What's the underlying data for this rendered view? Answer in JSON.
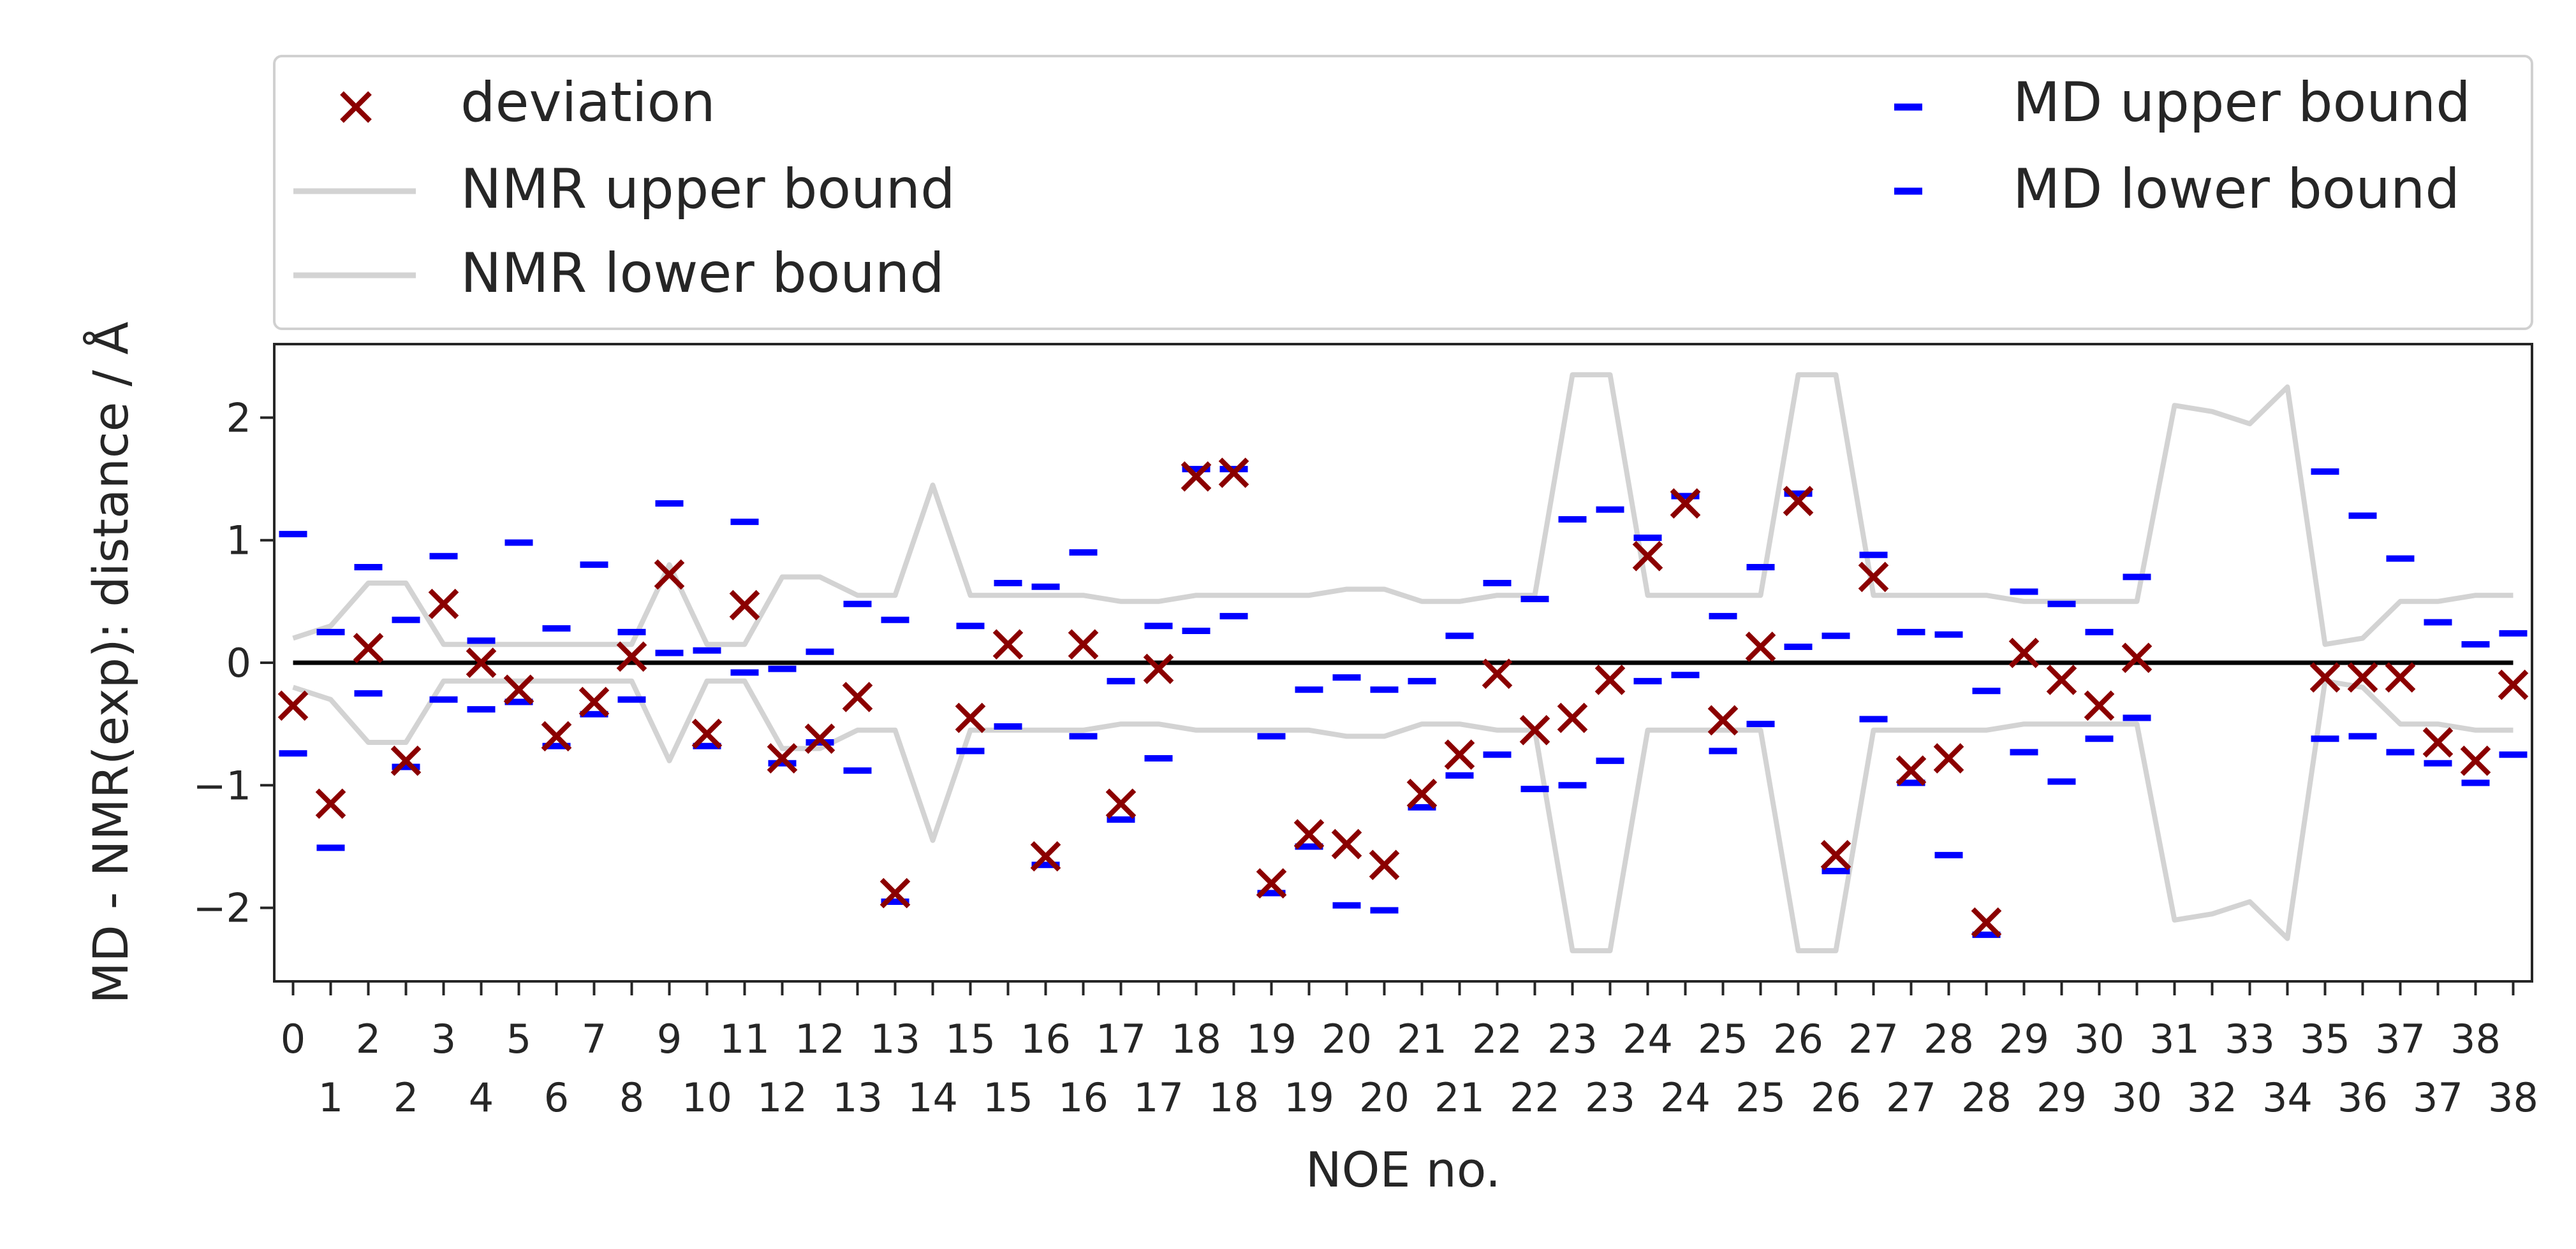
{
  "chart_data": {
    "type": "scatter",
    "xlabel": "NOE no.",
    "ylabel": "MD - NMR(exp): distance / Å",
    "xlim": [
      -0.5,
      59.5
    ],
    "ylim": [
      -2.6,
      2.6
    ],
    "yticks": [
      -2,
      -1,
      0,
      1,
      2
    ],
    "ytick_labels": [
      "−2",
      "−1",
      "0",
      "1",
      "2"
    ],
    "grid": false,
    "legend_position": "above plot",
    "x_tick_labels": [
      [
        "0",
        "1"
      ],
      [
        "2",
        "2"
      ],
      [
        "3",
        "4"
      ],
      [
        "5",
        "6"
      ],
      [
        "7",
        "8"
      ],
      [
        "9",
        "10"
      ],
      [
        "11",
        "12"
      ],
      [
        "12",
        "13"
      ],
      [
        "13",
        "14"
      ],
      [
        "15",
        "15"
      ],
      [
        "16",
        "16"
      ],
      [
        "17",
        "17"
      ],
      [
        "18",
        "18"
      ],
      [
        "19",
        "19"
      ],
      [
        "20",
        "20"
      ],
      [
        "21",
        "21"
      ],
      [
        "22",
        "22"
      ],
      [
        "23",
        "23"
      ],
      [
        "24",
        "24"
      ],
      [
        "25",
        "25"
      ],
      [
        "26",
        "26"
      ],
      [
        "27",
        "27"
      ],
      [
        "28",
        "28"
      ],
      [
        "29",
        "29"
      ],
      [
        "30",
        "30"
      ],
      [
        "31",
        "32"
      ],
      [
        "33",
        "34"
      ],
      [
        "35",
        "36"
      ],
      [
        "37",
        "37"
      ],
      [
        "38",
        "38"
      ]
    ],
    "series": [
      {
        "name": "deviation",
        "marker": "x",
        "color": "#8b0000",
        "points": [
          [
            0,
            -0.35
          ],
          [
            1,
            -1.15
          ],
          [
            2,
            0.12
          ],
          [
            3,
            -0.8
          ],
          [
            4,
            0.48
          ],
          [
            5,
            0.0
          ],
          [
            6,
            -0.22
          ],
          [
            7,
            -0.6
          ],
          [
            8,
            -0.32
          ],
          [
            9,
            0.05
          ],
          [
            10,
            0.72
          ],
          [
            11,
            -0.58
          ],
          [
            12,
            0.47
          ],
          [
            13,
            -0.78
          ],
          [
            14,
            -0.62
          ],
          [
            15,
            -0.28
          ],
          [
            16,
            -1.88
          ],
          [
            18,
            -0.45
          ],
          [
            19,
            0.15
          ],
          [
            20,
            -1.58
          ],
          [
            21,
            0.15
          ],
          [
            22,
            -1.15
          ],
          [
            23,
            -0.05
          ],
          [
            24,
            1.52
          ],
          [
            25,
            1.55
          ],
          [
            26,
            -1.8
          ],
          [
            27,
            -1.4
          ],
          [
            28,
            -1.48
          ],
          [
            29,
            -1.65
          ],
          [
            30,
            -1.07
          ],
          [
            31,
            -0.75
          ],
          [
            32,
            -0.09
          ],
          [
            33,
            -0.55
          ],
          [
            34,
            -0.45
          ],
          [
            35,
            -0.14
          ],
          [
            36,
            0.87
          ],
          [
            37,
            1.3
          ],
          [
            38,
            -0.47
          ],
          [
            39,
            0.13
          ],
          [
            40,
            1.32
          ],
          [
            41,
            -1.57
          ],
          [
            42,
            0.7
          ],
          [
            43,
            -0.88
          ],
          [
            44,
            -0.78
          ],
          [
            45,
            -2.12
          ],
          [
            46,
            0.08
          ],
          [
            47,
            -0.14
          ],
          [
            48,
            -0.35
          ],
          [
            49,
            0.04
          ],
          [
            54,
            -0.12
          ],
          [
            55,
            -0.12
          ],
          [
            56,
            -0.12
          ],
          [
            57,
            -0.65
          ],
          [
            58,
            -0.8
          ],
          [
            59,
            -0.18
          ]
        ]
      },
      {
        "name": "NMR upper bound",
        "color": "#d3d3d3",
        "values": [
          0.2,
          0.3,
          0.65,
          0.65,
          0.15,
          0.15,
          0.15,
          0.15,
          0.15,
          0.15,
          0.8,
          0.15,
          0.15,
          0.7,
          0.7,
          0.55,
          0.55,
          1.45,
          0.55,
          0.55,
          0.55,
          0.55,
          0.5,
          0.5,
          0.55,
          0.55,
          0.55,
          0.55,
          0.6,
          0.6,
          0.5,
          0.5,
          0.55,
          0.55,
          2.35,
          2.35,
          0.55,
          0.55,
          0.55,
          0.55,
          2.35,
          2.35,
          0.55,
          0.55,
          0.55,
          0.55,
          0.5,
          0.5,
          0.5,
          0.5,
          2.1,
          2.05,
          1.95,
          2.25,
          0.15,
          0.2,
          0.5,
          0.5,
          0.55,
          0.55
        ]
      },
      {
        "name": "NMR lower bound",
        "color": "#d3d3d3",
        "values": [
          -0.2,
          -0.3,
          -0.65,
          -0.65,
          -0.15,
          -0.15,
          -0.15,
          -0.15,
          -0.15,
          -0.15,
          -0.8,
          -0.15,
          -0.15,
          -0.7,
          -0.7,
          -0.55,
          -0.55,
          -1.45,
          -0.55,
          -0.55,
          -0.55,
          -0.55,
          -0.5,
          -0.5,
          -0.55,
          -0.55,
          -0.55,
          -0.55,
          -0.6,
          -0.6,
          -0.5,
          -0.5,
          -0.55,
          -0.55,
          -2.35,
          -2.35,
          -0.55,
          -0.55,
          -0.55,
          -0.55,
          -2.35,
          -2.35,
          -0.55,
          -0.55,
          -0.55,
          -0.55,
          -0.5,
          -0.5,
          -0.5,
          -0.5,
          -2.1,
          -2.05,
          -1.95,
          -2.25,
          -0.15,
          -0.2,
          -0.5,
          -0.5,
          -0.55,
          -0.55
        ]
      },
      {
        "name": "MD upper bound",
        "marker": "_",
        "color": "#0000ff",
        "points": [
          [
            0,
            1.05
          ],
          [
            1,
            0.25
          ],
          [
            2,
            0.78
          ],
          [
            3,
            0.35
          ],
          [
            4,
            0.87
          ],
          [
            5,
            0.18
          ],
          [
            6,
            0.98
          ],
          [
            7,
            0.28
          ],
          [
            8,
            0.8
          ],
          [
            9,
            0.25
          ],
          [
            10,
            1.3
          ],
          [
            11,
            0.1
          ],
          [
            12,
            1.15
          ],
          [
            13,
            -0.05
          ],
          [
            14,
            0.09
          ],
          [
            15,
            0.48
          ],
          [
            16,
            0.35
          ],
          [
            18,
            0.3
          ],
          [
            19,
            0.65
          ],
          [
            20,
            0.62
          ],
          [
            21,
            0.9
          ],
          [
            22,
            -0.15
          ],
          [
            23,
            0.3
          ],
          [
            24,
            1.58
          ],
          [
            25,
            1.58
          ],
          [
            26,
            -0.6
          ],
          [
            27,
            -0.22
          ],
          [
            28,
            -0.12
          ],
          [
            29,
            -0.22
          ],
          [
            30,
            -0.15
          ],
          [
            31,
            0.22
          ],
          [
            32,
            0.65
          ],
          [
            33,
            0.52
          ],
          [
            34,
            1.17
          ],
          [
            35,
            1.25
          ],
          [
            36,
            1.02
          ],
          [
            37,
            1.36
          ],
          [
            38,
            0.38
          ],
          [
            39,
            0.78
          ],
          [
            40,
            1.38
          ],
          [
            41,
            0.22
          ],
          [
            42,
            0.88
          ],
          [
            43,
            0.25
          ],
          [
            44,
            0.23
          ],
          [
            45,
            -0.23
          ],
          [
            46,
            0.58
          ],
          [
            47,
            0.48
          ],
          [
            48,
            0.25
          ],
          [
            49,
            0.7
          ],
          [
            54,
            1.56
          ],
          [
            55,
            1.2
          ],
          [
            56,
            0.85
          ],
          [
            57,
            0.33
          ],
          [
            58,
            0.15
          ],
          [
            59,
            0.24
          ]
        ]
      },
      {
        "name": "MD lower bound",
        "marker": "_",
        "color": "#0000ff",
        "points": [
          [
            0,
            -0.74
          ],
          [
            1,
            -1.51
          ],
          [
            2,
            -0.25
          ],
          [
            3,
            -0.85
          ],
          [
            4,
            -0.3
          ],
          [
            5,
            -0.38
          ],
          [
            6,
            -0.32
          ],
          [
            7,
            -0.68
          ],
          [
            8,
            -0.42
          ],
          [
            9,
            -0.3
          ],
          [
            10,
            0.08
          ],
          [
            11,
            -0.68
          ],
          [
            12,
            -0.08
          ],
          [
            13,
            -0.82
          ],
          [
            14,
            -0.65
          ],
          [
            15,
            -0.88
          ],
          [
            16,
            -1.95
          ],
          [
            18,
            -0.72
          ],
          [
            19,
            -0.52
          ],
          [
            20,
            -1.65
          ],
          [
            21,
            -0.6
          ],
          [
            22,
            -1.28
          ],
          [
            23,
            -0.78
          ],
          [
            24,
            0.26
          ],
          [
            25,
            0.38
          ],
          [
            26,
            -1.88
          ],
          [
            27,
            -1.5
          ],
          [
            28,
            -1.98
          ],
          [
            29,
            -2.02
          ],
          [
            30,
            -1.18
          ],
          [
            31,
            -0.92
          ],
          [
            32,
            -0.75
          ],
          [
            33,
            -1.03
          ],
          [
            34,
            -1.0
          ],
          [
            35,
            -0.8
          ],
          [
            36,
            -0.15
          ],
          [
            37,
            -0.1
          ],
          [
            38,
            -0.72
          ],
          [
            39,
            -0.5
          ],
          [
            40,
            0.13
          ],
          [
            41,
            -1.7
          ],
          [
            42,
            -0.46
          ],
          [
            43,
            -0.98
          ],
          [
            44,
            -1.57
          ],
          [
            45,
            -2.22
          ],
          [
            46,
            -0.73
          ],
          [
            47,
            -0.97
          ],
          [
            48,
            -0.62
          ],
          [
            49,
            -0.45
          ],
          [
            54,
            -0.62
          ],
          [
            55,
            -0.6
          ],
          [
            56,
            -0.73
          ],
          [
            57,
            -0.82
          ],
          [
            58,
            -0.98
          ],
          [
            59,
            -0.75
          ]
        ]
      },
      {
        "name": "",
        "color": "#000000",
        "values_constant": 0
      }
    ]
  }
}
